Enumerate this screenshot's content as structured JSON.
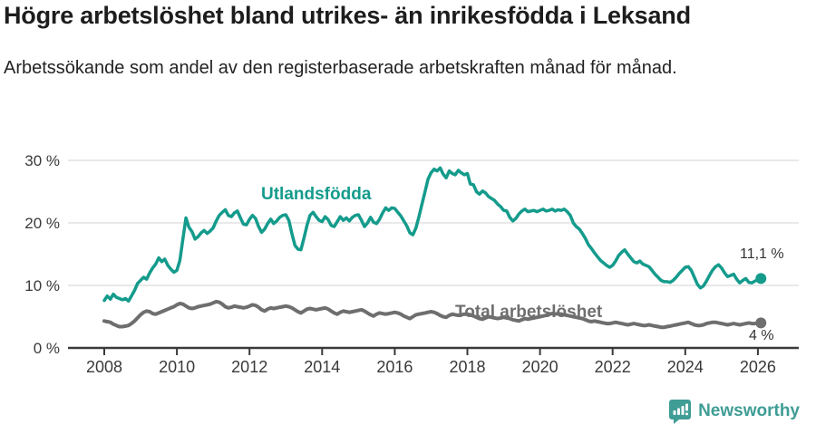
{
  "header": {
    "title": "Högre arbetslöshet bland utrikes- än inrikesfödda i Leksand",
    "subtitle": "Arbetssökande som andel av den registerbaserade arbetskraften månad för månad."
  },
  "colors": {
    "utlandsfodda": "#149b8c",
    "total": "#6e6e6e",
    "gridline": "#e2e2e2",
    "axis": "#3a3a3a",
    "tick_text": "#3a3a3a",
    "logo_teal": "#3f9d95"
  },
  "chart_data": {
    "type": "line",
    "title": "Högre arbetslöshet bland utrikes- än inrikesfödda i Leksand",
    "subtitle": "Arbetssökande som andel av den registerbaserade arbetskraften månad för månad.",
    "x_unit": "year (monthly data)",
    "x_start": 2008.0,
    "x_step": 0.0833333,
    "xlim": [
      2007.0,
      2027.1
    ],
    "ylim": [
      0,
      30
    ],
    "grid": "horizontal",
    "legend_position": "inline-labels",
    "yticks": {
      "values": [
        0,
        10,
        20,
        30
      ],
      "labels": [
        "0 %",
        "10 %",
        "20 %",
        "30 %"
      ]
    },
    "xticks": {
      "values": [
        2008,
        2010,
        2012,
        2014,
        2016,
        2018,
        2020,
        2022,
        2024,
        2026
      ],
      "labels": [
        "2008",
        "2010",
        "2012",
        "2014",
        "2016",
        "2018",
        "2020",
        "2022",
        "2024",
        "2026"
      ]
    },
    "series": [
      {
        "name": "Utlandsfödda",
        "color": "#149b8c",
        "end_value_label": "11,1 %",
        "values": [
          7.6,
          8.3,
          7.8,
          8.6,
          8.1,
          7.9,
          7.7,
          7.9,
          7.5,
          8.3,
          9.2,
          10.3,
          10.8,
          11.3,
          11.0,
          12.0,
          12.8,
          13.4,
          14.4,
          13.8,
          14.2,
          13.2,
          12.6,
          12.1,
          12.4,
          14.0,
          17.5,
          20.8,
          19.3,
          18.6,
          17.4,
          17.8,
          18.4,
          18.8,
          18.3,
          18.7,
          19.2,
          20.3,
          21.2,
          21.7,
          22.1,
          21.2,
          21.0,
          21.6,
          21.9,
          20.8,
          19.8,
          19.7,
          20.6,
          21.2,
          20.7,
          19.4,
          18.5,
          19.0,
          19.9,
          20.6,
          19.9,
          20.3,
          20.9,
          21.2,
          21.3,
          20.4,
          18.3,
          16.4,
          15.8,
          15.7,
          17.6,
          19.6,
          21.2,
          21.7,
          21.0,
          20.4,
          20.2,
          21.0,
          20.5,
          19.6,
          19.4,
          20.2,
          21.0,
          20.4,
          20.8,
          20.3,
          20.9,
          21.2,
          21.3,
          20.4,
          19.4,
          20.0,
          20.9,
          20.1,
          19.9,
          20.6,
          21.6,
          22.4,
          22.0,
          22.4,
          22.3,
          21.7,
          21.1,
          20.3,
          19.5,
          18.4,
          18.1,
          19.2,
          21.0,
          23.0,
          25.0,
          27.0,
          28.0,
          28.6,
          28.3,
          28.8,
          27.8,
          27.2,
          28.3,
          27.9,
          27.7,
          28.4,
          28.0,
          27.7,
          27.9,
          26.2,
          26.1,
          25.0,
          24.6,
          25.1,
          24.8,
          24.2,
          23.9,
          23.6,
          23.0,
          22.6,
          22.0,
          21.9,
          20.9,
          20.3,
          20.7,
          21.4,
          21.9,
          22.2,
          21.8,
          21.9,
          22.0,
          21.8,
          22.0,
          22.2,
          21.9,
          22.0,
          22.2,
          21.9,
          22.1,
          22.0,
          22.2,
          21.8,
          21.2,
          20.0,
          19.4,
          19.0,
          18.3,
          17.5,
          16.5,
          15.9,
          15.2,
          14.6,
          14.0,
          13.6,
          13.2,
          12.9,
          13.2,
          13.9,
          14.8,
          15.3,
          15.7,
          15.0,
          14.4,
          13.8,
          13.6,
          13.9,
          13.4,
          13.2,
          13.0,
          12.4,
          11.8,
          11.3,
          10.8,
          10.6,
          10.6,
          10.5,
          10.8,
          11.3,
          11.9,
          12.4,
          12.9,
          13.0,
          12.4,
          11.3,
          10.2,
          9.6,
          9.9,
          10.7,
          11.6,
          12.4,
          13.0,
          13.3,
          12.8,
          12.0,
          11.4,
          11.6,
          11.8,
          11.0,
          10.4,
          10.8,
          11.1,
          10.5,
          10.4,
          10.7,
          10.9,
          11.1
        ]
      },
      {
        "name": "Total arbetslöshet",
        "color": "#6e6e6e",
        "end_value_label": "4 %",
        "values": [
          4.3,
          4.2,
          4.1,
          3.8,
          3.6,
          3.4,
          3.4,
          3.5,
          3.6,
          3.9,
          4.3,
          4.8,
          5.3,
          5.7,
          5.9,
          5.8,
          5.5,
          5.4,
          5.6,
          5.8,
          6.0,
          6.2,
          6.4,
          6.6,
          6.9,
          7.1,
          7.0,
          6.7,
          6.4,
          6.3,
          6.4,
          6.6,
          6.7,
          6.8,
          6.9,
          7.0,
          7.2,
          7.4,
          7.3,
          7.0,
          6.6,
          6.4,
          6.5,
          6.7,
          6.6,
          6.5,
          6.4,
          6.5,
          6.7,
          6.9,
          6.8,
          6.5,
          6.1,
          5.9,
          6.2,
          6.4,
          6.3,
          6.4,
          6.5,
          6.6,
          6.7,
          6.6,
          6.4,
          6.1,
          5.8,
          5.6,
          5.9,
          6.2,
          6.3,
          6.2,
          6.1,
          6.2,
          6.3,
          6.4,
          6.2,
          5.9,
          5.6,
          5.4,
          5.7,
          5.9,
          5.8,
          5.7,
          5.8,
          5.9,
          6.0,
          6.1,
          5.9,
          5.6,
          5.3,
          5.1,
          5.4,
          5.6,
          5.5,
          5.4,
          5.5,
          5.6,
          5.7,
          5.6,
          5.4,
          5.1,
          4.9,
          4.7,
          5.0,
          5.3,
          5.4,
          5.5,
          5.6,
          5.7,
          5.8,
          5.7,
          5.5,
          5.2,
          5.0,
          4.9,
          5.2,
          5.4,
          5.3,
          5.2,
          5.3,
          5.4,
          5.4,
          5.3,
          5.1,
          4.9,
          4.7,
          4.6,
          4.8,
          5.0,
          4.9,
          4.8,
          4.7,
          4.8,
          4.9,
          4.8,
          4.7,
          4.5,
          4.4,
          4.3,
          4.5,
          4.7,
          4.6,
          4.7,
          4.8,
          4.9,
          5.0,
          5.1,
          5.2,
          5.4,
          5.5,
          5.4,
          5.5,
          5.4,
          5.3,
          5.2,
          5.1,
          5.0,
          4.9,
          4.8,
          4.7,
          4.5,
          4.3,
          4.2,
          4.3,
          4.2,
          4.1,
          4.0,
          3.9,
          3.9,
          4.0,
          4.1,
          4.0,
          3.9,
          3.8,
          3.7,
          3.8,
          3.9,
          3.8,
          3.7,
          3.6,
          3.6,
          3.7,
          3.6,
          3.5,
          3.4,
          3.3,
          3.3,
          3.4,
          3.5,
          3.6,
          3.7,
          3.8,
          3.9,
          4.0,
          4.1,
          3.9,
          3.7,
          3.6,
          3.6,
          3.7,
          3.9,
          4.0,
          4.1,
          4.1,
          4.0,
          3.9,
          3.8,
          3.7,
          3.8,
          3.9,
          3.8,
          3.7,
          3.8,
          3.9,
          4.0,
          3.9,
          3.9,
          4.0,
          4.0
        ]
      }
    ]
  },
  "annotations": {
    "utlandsfodda_label": "Utlandsfödda",
    "total_label": "Total arbetslöshet",
    "utlandsfodda_end": "11,1 %",
    "total_end": "4 %"
  },
  "footer": {
    "brand": "Newsworthy"
  }
}
